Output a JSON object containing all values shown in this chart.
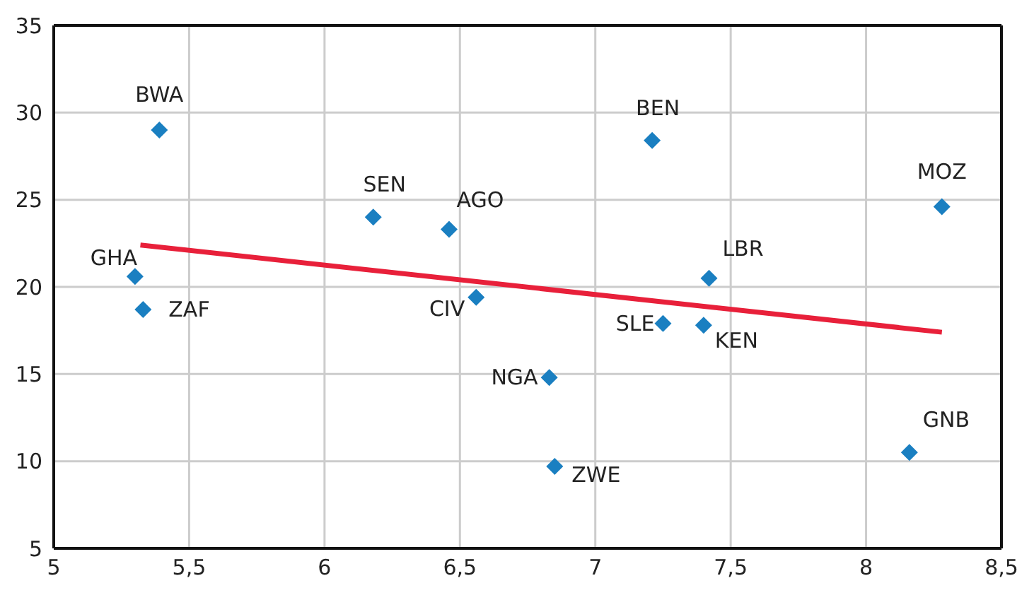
{
  "chart_data": {
    "type": "scatter",
    "xlim": [
      5,
      8.5
    ],
    "ylim": [
      5,
      35
    ],
    "xticks": [
      5,
      {
        "value": 5.5,
        "label": "5,5"
      },
      6,
      {
        "value": 6.5,
        "label": "6,5"
      },
      7,
      {
        "value": 7.5,
        "label": "7,5"
      },
      8,
      {
        "value": 8.5,
        "label": "8,5"
      }
    ],
    "yticks": [
      5,
      10,
      15,
      20,
      25,
      30,
      35
    ],
    "grid": true,
    "series": [
      {
        "color": "#1a7fc1",
        "marker": "diamond",
        "x": [
          5.39,
          5.3,
          5.33,
          6.18,
          6.46,
          6.56,
          6.83,
          6.85,
          7.21,
          7.25,
          7.4,
          7.42,
          8.28,
          8.16
        ],
        "values": [
          29.0,
          20.6,
          18.7,
          24.0,
          23.3,
          19.4,
          14.8,
          9.7,
          28.4,
          17.9,
          17.8,
          20.5,
          24.6,
          10.5
        ],
        "value_labels": [
          "BWA",
          "GHA",
          "ZAF",
          "SEN",
          "AGO",
          "CIV",
          "NGA",
          "ZWE",
          "BEN",
          "SLE",
          "KEN",
          "LBR",
          "MOZ",
          "GNB"
        ]
      },
      {
        "type": "line",
        "color": "#e8203a",
        "marker": "none",
        "x": [
          5.32,
          8.28
        ],
        "values": [
          22.4,
          17.4
        ]
      }
    ]
  }
}
